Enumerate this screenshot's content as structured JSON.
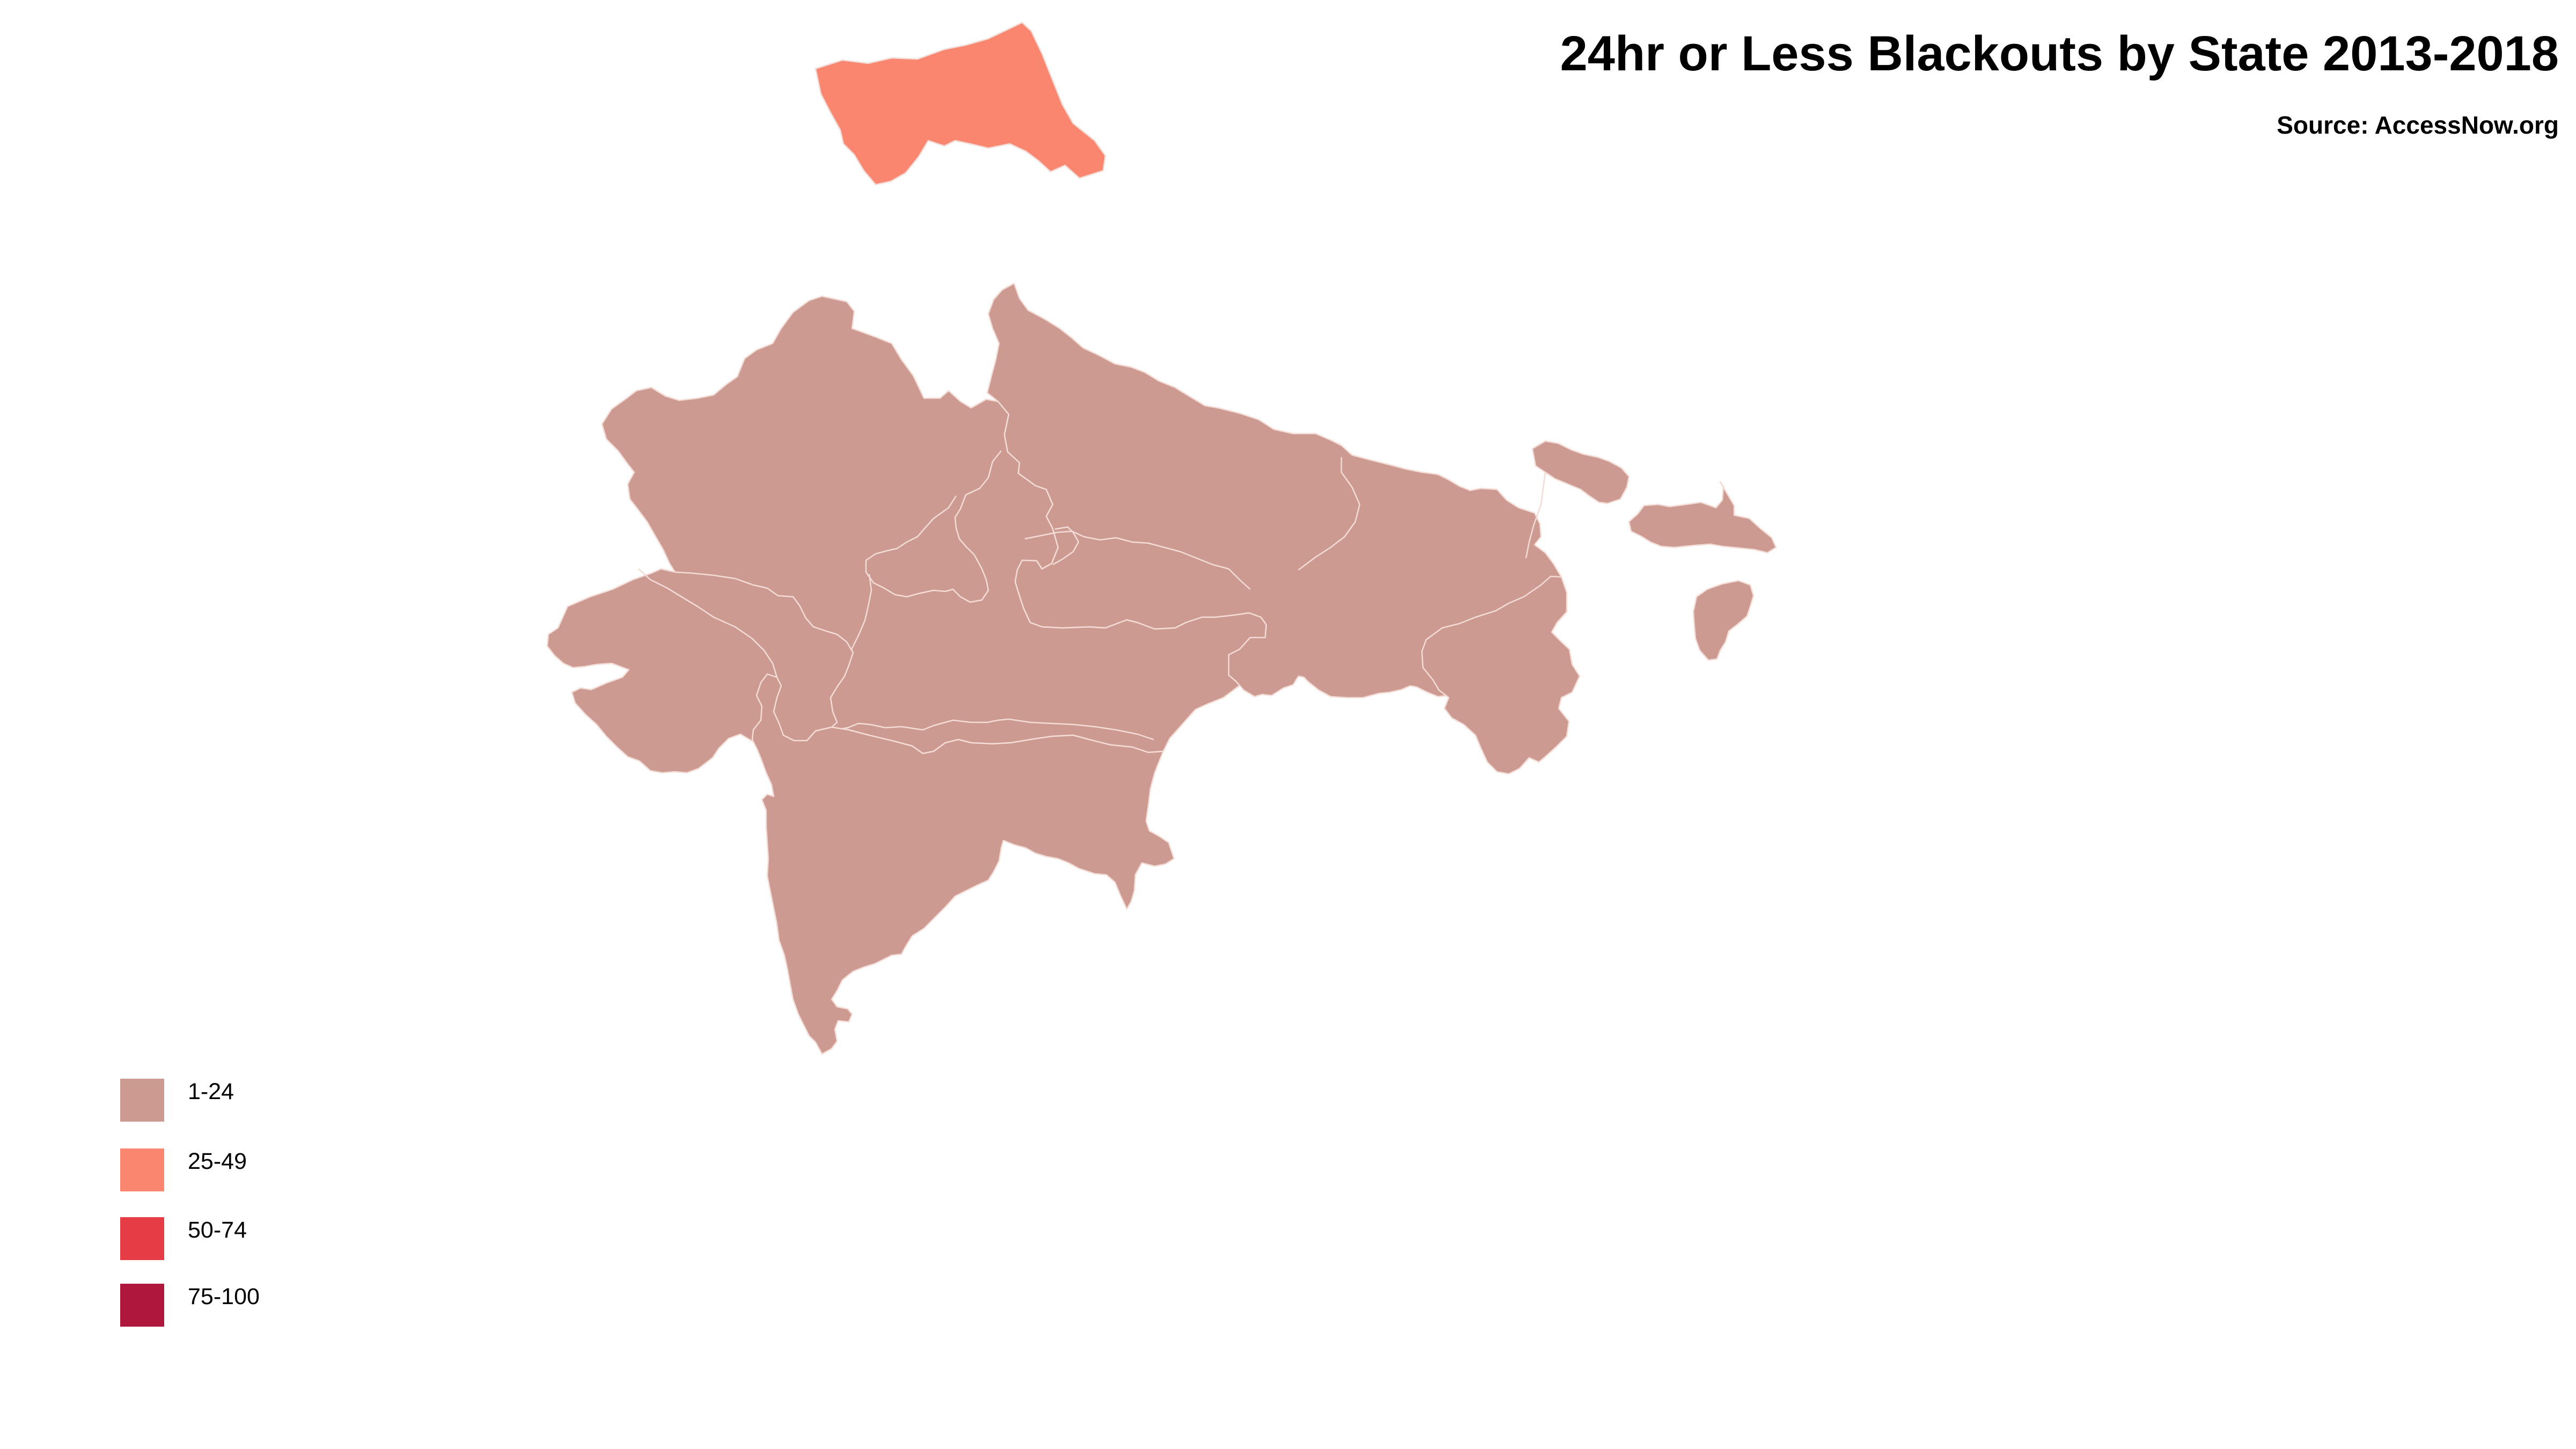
{
  "title": "24hr or Less Blackouts by State 2013-2018",
  "source": "Source: AccessNow.org",
  "legend": {
    "items": [
      {
        "label": "1-24",
        "color": "#cc9a90"
      },
      {
        "label": "25-49",
        "color": "#fb8670"
      },
      {
        "label": "50-74",
        "color": "#e63c46"
      },
      {
        "label": "75-100",
        "color": "#b0173d"
      }
    ]
  },
  "regions": [
    {
      "name": "jammu-and-kashmir",
      "category": "25-49",
      "color": "#fb8670"
    },
    {
      "name": "northern-and-central-states",
      "category": "1-24",
      "color": "#cc9a90"
    },
    {
      "name": "eastern-states",
      "category": "1-24",
      "color": "#cc9a90"
    },
    {
      "name": "southern-peninsula",
      "category": "1-24",
      "color": "#cc9a90"
    },
    {
      "name": "northeast-states",
      "category": "1-24",
      "color": "#cc9a90"
    }
  ]
}
